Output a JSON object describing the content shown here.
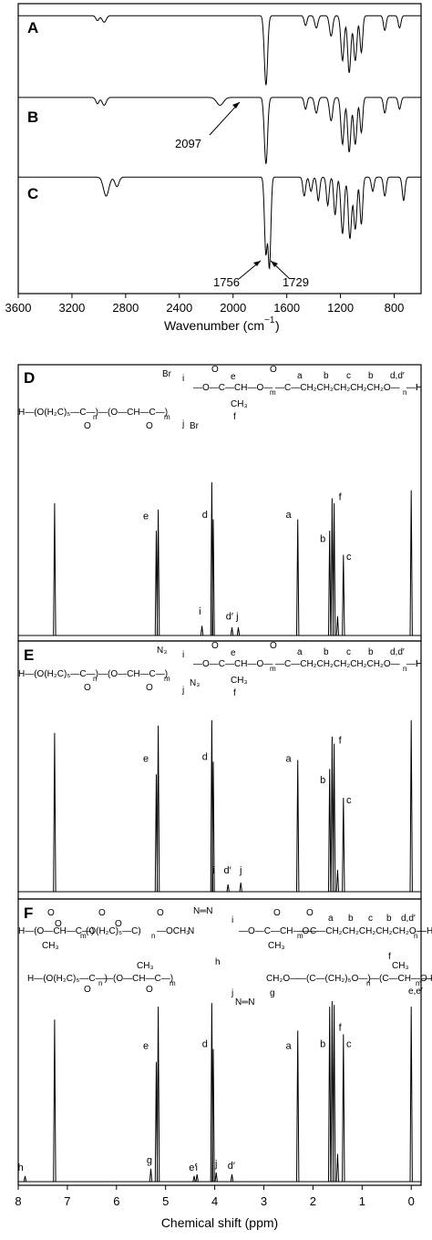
{
  "ftir": {
    "xlabel": "Wavenumber (cm",
    "xlabel_sup": "−1",
    "xlabel_end": ")",
    "xticks": [
      3600,
      3200,
      2800,
      2400,
      2000,
      1600,
      1200,
      800
    ],
    "xlim": [
      3600,
      600
    ],
    "panels": [
      {
        "label": "A",
        "baseline": 0.92,
        "dips": [
          [
            3010,
            0.06,
            12
          ],
          [
            2960,
            0.08,
            15
          ],
          [
            1755,
            0.85,
            12
          ],
          [
            1460,
            0.12,
            10
          ],
          [
            1380,
            0.15,
            12
          ],
          [
            1270,
            0.25,
            12
          ],
          [
            1185,
            0.55,
            12
          ],
          [
            1135,
            0.7,
            12
          ],
          [
            1090,
            0.55,
            12
          ],
          [
            1045,
            0.45,
            10
          ],
          [
            870,
            0.18,
            10
          ],
          [
            760,
            0.15,
            10
          ]
        ]
      },
      {
        "label": "B",
        "baseline": 0.92,
        "dips": [
          [
            3010,
            0.08,
            12
          ],
          [
            2960,
            0.1,
            15
          ],
          [
            2097,
            0.1,
            25
          ],
          [
            1755,
            0.85,
            12
          ],
          [
            1460,
            0.15,
            10
          ],
          [
            1380,
            0.2,
            12
          ],
          [
            1270,
            0.3,
            12
          ],
          [
            1185,
            0.6,
            12
          ],
          [
            1135,
            0.7,
            12
          ],
          [
            1090,
            0.6,
            12
          ],
          [
            1045,
            0.45,
            10
          ],
          [
            870,
            0.2,
            10
          ],
          [
            760,
            0.15,
            10
          ]
        ]
      },
      {
        "label": "C",
        "baseline": 0.92,
        "dips": [
          [
            2945,
            0.2,
            20
          ],
          [
            2865,
            0.1,
            15
          ],
          [
            1756,
            0.8,
            10
          ],
          [
            1729,
            0.95,
            10
          ],
          [
            1470,
            0.2,
            10
          ],
          [
            1420,
            0.15,
            10
          ],
          [
            1365,
            0.25,
            10
          ],
          [
            1295,
            0.3,
            10
          ],
          [
            1240,
            0.4,
            10
          ],
          [
            1185,
            0.6,
            12
          ],
          [
            1130,
            0.65,
            12
          ],
          [
            1090,
            0.55,
            12
          ],
          [
            1045,
            0.5,
            10
          ],
          [
            960,
            0.15,
            10
          ],
          [
            870,
            0.2,
            10
          ],
          [
            730,
            0.25,
            10
          ]
        ]
      }
    ],
    "annotations": [
      {
        "text": "2097",
        "panel": 1,
        "x": 2097
      },
      {
        "text": "1756",
        "panel": 2,
        "x": 1756
      },
      {
        "text": "1729",
        "panel": 2,
        "x": 1729
      }
    ]
  },
  "nmr": {
    "xlabel": "Chemical shift (ppm)",
    "xticks": [
      8,
      7,
      6,
      5,
      4,
      3,
      2,
      1,
      0
    ],
    "xlim": [
      8,
      -0.2
    ],
    "panels": [
      {
        "label": "D",
        "peaks": [
          [
            7.26,
            0.82
          ],
          [
            5.19,
            0.65
          ],
          [
            5.15,
            0.78
          ],
          [
            4.26,
            0.06
          ],
          [
            4.06,
            0.95
          ],
          [
            4.03,
            0.72
          ],
          [
            3.65,
            0.05
          ],
          [
            3.52,
            0.05
          ],
          [
            2.31,
            0.72
          ],
          [
            1.66,
            0.65
          ],
          [
            1.61,
            0.85
          ],
          [
            1.57,
            0.82
          ],
          [
            1.5,
            0.12
          ],
          [
            1.38,
            0.5
          ],
          [
            0.0,
            0.9
          ]
        ],
        "labels": [
          [
            "e",
            5.4,
            0.72
          ],
          [
            "d",
            4.2,
            0.73
          ],
          [
            "i",
            4.3,
            0.13
          ],
          [
            "d′",
            3.7,
            0.1
          ],
          [
            "j",
            3.54,
            0.1
          ],
          [
            "a",
            2.5,
            0.73
          ],
          [
            "b",
            1.8,
            0.58
          ],
          [
            "f",
            1.45,
            0.84
          ],
          [
            "c",
            1.27,
            0.47
          ]
        ],
        "structure": [
          "Br",
          "i",
          "O",
          "e",
          "O",
          "a",
          "b",
          "c",
          "b",
          "d,d′",
          "CH₃",
          "Br",
          "j",
          "f",
          "H",
          "—O—C—CH—O—",
          "m",
          "—C—CH₂CH₂CH₂CH₂CH₂O—",
          "n",
          "—H",
          "H—(O(H₂C)₅—C—)",
          "n",
          "—(O—CH—C—)",
          "m",
          "O",
          "O"
        ]
      },
      {
        "label": "E",
        "peaks": [
          [
            7.26,
            0.88
          ],
          [
            5.19,
            0.65
          ],
          [
            5.15,
            0.92
          ],
          [
            4.06,
            0.95
          ],
          [
            4.03,
            0.72
          ],
          [
            3.73,
            0.04
          ],
          [
            3.47,
            0.05
          ],
          [
            2.31,
            0.73
          ],
          [
            1.66,
            0.68
          ],
          [
            1.61,
            0.86
          ],
          [
            1.57,
            0.82
          ],
          [
            1.5,
            0.12
          ],
          [
            1.38,
            0.52
          ],
          [
            0.0,
            0.95
          ]
        ],
        "labels": [
          [
            "e",
            5.4,
            0.72
          ],
          [
            "d",
            4.2,
            0.73
          ],
          [
            "i",
            4.02,
            0.1
          ],
          [
            "d′",
            3.74,
            0.1
          ],
          [
            "j",
            3.47,
            0.1
          ],
          [
            "a",
            2.5,
            0.72
          ],
          [
            "b",
            1.8,
            0.6
          ],
          [
            "f",
            1.45,
            0.82
          ],
          [
            "c",
            1.27,
            0.49
          ]
        ],
        "structure": [
          "N₃",
          "i",
          "O",
          "e",
          "O",
          "a",
          "b",
          "c",
          "b",
          "d,d′",
          "CH₃",
          "N₃",
          "j",
          "f",
          "H",
          "—O—C—CH—O—",
          "m",
          "—C—CH₂CH₂CH₂CH₂CH₂O—",
          "n",
          "—H",
          "H—(O(H₂C)₅—C—)",
          "n",
          "—(O—CH—C—)",
          "m",
          "O",
          "O"
        ]
      },
      {
        "label": "F",
        "peaks": [
          [
            7.86,
            0.03
          ],
          [
            7.26,
            0.88
          ],
          [
            5.3,
            0.07
          ],
          [
            5.19,
            0.65
          ],
          [
            5.15,
            0.95
          ],
          [
            4.42,
            0.03
          ],
          [
            4.36,
            0.04
          ],
          [
            4.06,
            0.97
          ],
          [
            4.03,
            0.72
          ],
          [
            3.97,
            0.05
          ],
          [
            3.65,
            0.04
          ],
          [
            2.31,
            0.82
          ],
          [
            1.66,
            0.95
          ],
          [
            1.61,
            0.98
          ],
          [
            1.57,
            0.96
          ],
          [
            1.5,
            0.15
          ],
          [
            1.38,
            0.8
          ],
          [
            0.0,
            0.95
          ]
        ],
        "labels": [
          [
            "h",
            7.95,
            0.06
          ],
          [
            "e",
            5.4,
            0.72
          ],
          [
            "g",
            5.33,
            0.1
          ],
          [
            "e′",
            4.45,
            0.06
          ],
          [
            "i",
            4.37,
            0.06
          ],
          [
            "d",
            4.2,
            0.73
          ],
          [
            "j",
            3.97,
            0.08
          ],
          [
            "d′",
            3.66,
            0.07
          ],
          [
            "a",
            2.5,
            0.72
          ],
          [
            "b",
            1.8,
            0.73
          ],
          [
            "f",
            1.45,
            0.82
          ],
          [
            "c",
            1.27,
            0.73
          ]
        ],
        "structure": [
          "O",
          "O",
          "O",
          "N═N",
          "i",
          "O",
          "O",
          "a",
          "b",
          "c",
          "b",
          "d,d′",
          "H—(O—CH—C—)",
          "m",
          "(O(H₂C)₅—C)",
          "n",
          "—OCH₂",
          "N",
          "—O—C—CH—O—",
          "m",
          "—C—CH₂CH₂CH₂CH₂CH₂O—",
          "n",
          "—H",
          "CH₃",
          "CH₃",
          "h",
          "H—(O(H₂C)₅—C—)",
          "n",
          "—(O—CH—C—)",
          "m",
          "CH₃",
          "CH₂O—",
          "g",
          "—(C—(CH₂)₅O—)",
          "n",
          "—(C—CH—O—)",
          "m",
          "—H",
          "f",
          "CH₃",
          "j",
          "N═N",
          "O",
          "O",
          "O",
          "O",
          "e,e′"
        ]
      }
    ]
  }
}
